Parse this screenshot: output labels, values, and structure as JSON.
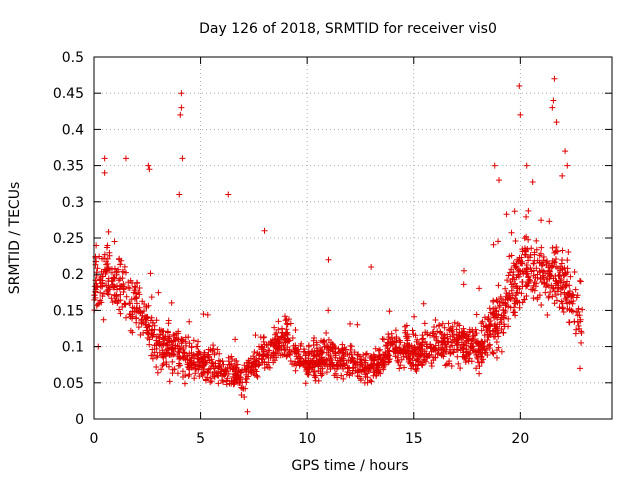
{
  "chart_data": {
    "type": "scatter",
    "title": "Day 126 of 2018, SRMTID for receiver vis0",
    "xlabel": "GPS time / hours",
    "ylabel": "SRMTID / TECUs",
    "xlim": [
      0,
      24.3
    ],
    "ylim": [
      0,
      0.5
    ],
    "x_ticks": [
      0,
      5,
      10,
      15,
      20
    ],
    "y_ticks": [
      0,
      0.05,
      0.1,
      0.15,
      0.2,
      0.25,
      0.3,
      0.35,
      0.4,
      0.45,
      0.5
    ],
    "x_tick_labels": [
      "0",
      "5",
      "10",
      "15",
      "20"
    ],
    "y_tick_labels": [
      "0",
      "0.05",
      "0.1",
      "0.15",
      "0.2",
      "0.25",
      "0.3",
      "0.35",
      "0.4",
      "0.45",
      "0.5"
    ],
    "grid": true,
    "marker": "+",
    "series_color": "#e00000",
    "envelope": {
      "hours": [
        0,
        1,
        2,
        3,
        4,
        5,
        6,
        7,
        8,
        9,
        10,
        11,
        12,
        13,
        14,
        15,
        16,
        17,
        18,
        19,
        20,
        21,
        22,
        22.9
      ],
      "median": [
        0.19,
        0.19,
        0.16,
        0.1,
        0.09,
        0.08,
        0.07,
        0.055,
        0.09,
        0.11,
        0.075,
        0.09,
        0.075,
        0.07,
        0.1,
        0.09,
        0.1,
        0.11,
        0.1,
        0.14,
        0.2,
        0.2,
        0.19,
        0.13
      ],
      "spread": [
        0.06,
        0.07,
        0.06,
        0.05,
        0.05,
        0.04,
        0.04,
        0.035,
        0.04,
        0.045,
        0.035,
        0.04,
        0.035,
        0.035,
        0.04,
        0.045,
        0.045,
        0.05,
        0.05,
        0.07,
        0.08,
        0.07,
        0.08,
        0.05
      ],
      "points_per_hour": 90
    },
    "highlights": [
      {
        "x": 0.2,
        "y": 0.1
      },
      {
        "x": 0.5,
        "y": 0.36
      },
      {
        "x": 0.5,
        "y": 0.34
      },
      {
        "x": 1.5,
        "y": 0.36
      },
      {
        "x": 2.55,
        "y": 0.35
      },
      {
        "x": 2.6,
        "y": 0.345
      },
      {
        "x": 4.1,
        "y": 0.45
      },
      {
        "x": 4.1,
        "y": 0.43
      },
      {
        "x": 4.05,
        "y": 0.42
      },
      {
        "x": 4.15,
        "y": 0.36
      },
      {
        "x": 4.0,
        "y": 0.31
      },
      {
        "x": 6.3,
        "y": 0.31
      },
      {
        "x": 7.2,
        "y": 0.01
      },
      {
        "x": 8.0,
        "y": 0.26
      },
      {
        "x": 11.0,
        "y": 0.22
      },
      {
        "x": 13.0,
        "y": 0.21
      },
      {
        "x": 18.8,
        "y": 0.35
      },
      {
        "x": 19.0,
        "y": 0.33
      },
      {
        "x": 19.95,
        "y": 0.46
      },
      {
        "x": 20.0,
        "y": 0.42
      },
      {
        "x": 21.6,
        "y": 0.47
      },
      {
        "x": 21.55,
        "y": 0.44
      },
      {
        "x": 21.5,
        "y": 0.43
      },
      {
        "x": 21.7,
        "y": 0.41
      },
      {
        "x": 22.1,
        "y": 0.37
      },
      {
        "x": 22.2,
        "y": 0.35
      },
      {
        "x": 20.3,
        "y": 0.35
      },
      {
        "x": 22.8,
        "y": 0.07
      }
    ]
  }
}
